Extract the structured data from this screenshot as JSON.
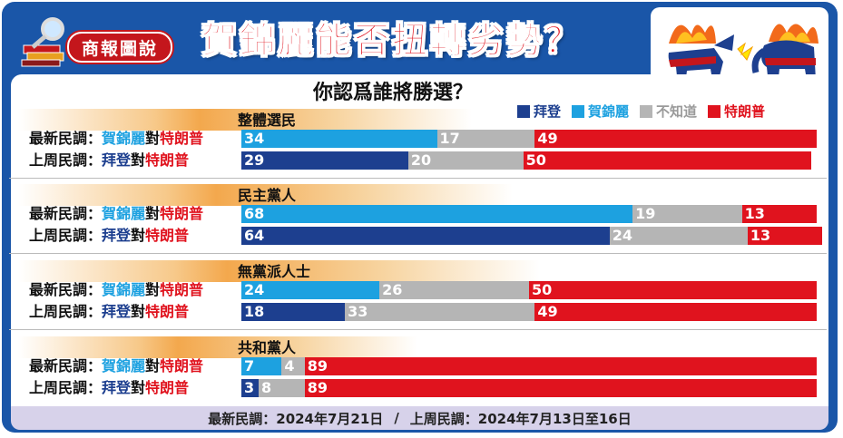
{
  "header": {
    "brand": "商報圖說",
    "headline": "賀錦麗能否扭轉劣勢？"
  },
  "question": "你認爲誰將勝選？",
  "legend": [
    {
      "label": "拜登",
      "color": "#1d3f8f"
    },
    {
      "label": "賀錦麗",
      "color": "#1da1e0"
    },
    {
      "label": "不知道",
      "color": "#b5b5b5"
    },
    {
      "label": "特朗普",
      "color": "#e0131e"
    }
  ],
  "row_labels": {
    "latest_prefix": "最新民調：",
    "last_week_prefix": "上周民調：",
    "harris": "賀錦麗",
    "biden": "拜登",
    "vs": "對",
    "trump": "特朗普"
  },
  "chart_data": {
    "type": "bar",
    "stacked": true,
    "orientation": "horizontal",
    "groups": [
      {
        "name": "整體選民",
        "rows": [
          {
            "poll": "latest",
            "dem": "賀錦麗",
            "values": [
              34,
              17,
              49
            ]
          },
          {
            "poll": "last_week",
            "dem": "拜登",
            "values": [
              29,
              20,
              50
            ]
          }
        ]
      },
      {
        "name": "民主黨人",
        "rows": [
          {
            "poll": "latest",
            "dem": "賀錦麗",
            "values": [
              68,
              19,
              13
            ]
          },
          {
            "poll": "last_week",
            "dem": "拜登",
            "values": [
              64,
              24,
              13
            ]
          }
        ]
      },
      {
        "name": "無黨派人士",
        "rows": [
          {
            "poll": "latest",
            "dem": "賀錦麗",
            "values": [
              24,
              26,
              50
            ]
          },
          {
            "poll": "last_week",
            "dem": "拜登",
            "values": [
              18,
              33,
              49
            ]
          }
        ]
      },
      {
        "name": "共和黨人",
        "rows": [
          {
            "poll": "latest",
            "dem": "賀錦麗",
            "values": [
              7,
              4,
              89
            ]
          },
          {
            "poll": "last_week",
            "dem": "拜登",
            "values": [
              3,
              8,
              89
            ]
          }
        ]
      }
    ],
    "segment_order": [
      "民主黨候選人",
      "不知道",
      "特朗普"
    ]
  },
  "footer": {
    "latest": "最新民調：2024年7月21日",
    "separator": "/",
    "last_week": "上周民調：2024年7月13日至16日"
  }
}
